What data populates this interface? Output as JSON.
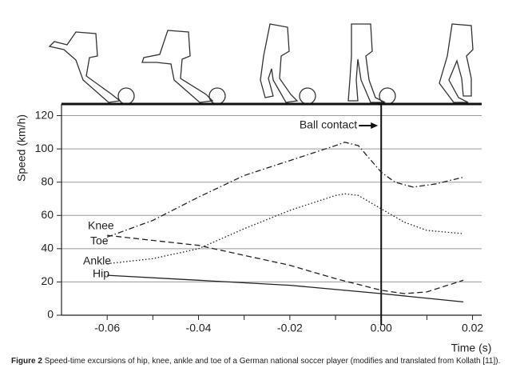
{
  "chart_data": {
    "type": "line",
    "y_label": "Speed (km/h)",
    "x_label": "Time (s)",
    "xlim": [
      -0.07,
      0.022
    ],
    "ylim": [
      0,
      127
    ],
    "xticks": [
      -0.06,
      -0.04,
      -0.02,
      {
        "value": 0,
        "label": "0.00"
      },
      0.02
    ],
    "xminorticks": [
      -0.05,
      -0.03,
      -0.01,
      0.01
    ],
    "yticks": [
      0,
      20,
      40,
      60,
      80,
      100,
      120
    ],
    "grid": true,
    "annotation": {
      "text": "Ball contact",
      "x": 0
    },
    "series": [
      {
        "name": "Knee",
        "color": "#222",
        "style": "dashed",
        "x": [
          -0.06,
          -0.05,
          -0.04,
          -0.03,
          -0.02,
          -0.01,
          0,
          0.005,
          0.01,
          0.018
        ],
        "values": [
          48,
          45,
          42,
          36,
          30,
          22,
          15,
          13,
          14,
          21
        ]
      },
      {
        "name": "Toe",
        "color": "#222",
        "style": "dashdot",
        "x": [
          -0.06,
          -0.05,
          -0.04,
          -0.03,
          -0.02,
          -0.01,
          -0.008,
          -0.005,
          0,
          0.003,
          0.007,
          0.012,
          0.018
        ],
        "values": [
          47,
          57,
          71,
          84,
          93,
          102,
          104,
          102,
          86,
          80,
          77,
          79,
          83
        ]
      },
      {
        "name": "Ankle",
        "color": "#222",
        "style": "dotted",
        "x": [
          -0.06,
          -0.05,
          -0.04,
          -0.03,
          -0.02,
          -0.01,
          -0.008,
          -0.005,
          0,
          0.005,
          0.01,
          0.018
        ],
        "values": [
          31,
          34,
          40,
          52,
          63,
          72,
          73,
          72,
          64,
          56,
          51,
          49
        ]
      },
      {
        "name": "Hip",
        "color": "#222",
        "style": "solid",
        "x": [
          -0.06,
          -0.04,
          -0.02,
          0,
          0.018
        ],
        "values": [
          24,
          21,
          18,
          13,
          8
        ]
      }
    ]
  },
  "caption": {
    "label": "Figure 2",
    "text": "Speed-time excursions of hip, knee, ankle and toe of a German national soccer player (modifies and translated from Kollath [11])."
  }
}
